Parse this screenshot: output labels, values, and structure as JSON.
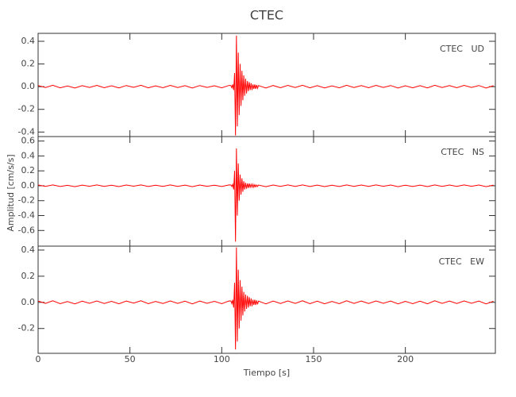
{
  "figure": {
    "title": "CTEC",
    "xlabel": "Tiempo [s]",
    "ylabel": "Amplitud [cm/s/s]"
  },
  "chart_data": [
    {
      "type": "line",
      "label": "CTEC   UD",
      "color": "#ff0000",
      "xlim": [
        0,
        249
      ],
      "xticks": [
        0,
        50,
        100,
        150,
        200
      ],
      "ylim": [
        -0.44,
        0.47
      ],
      "yticks": [
        -0.4,
        -0.2,
        {
          "value": 0,
          "label": "0.0"
        },
        0.2,
        0.4
      ],
      "x": [
        0,
        4,
        8,
        12,
        16,
        20,
        24,
        28,
        32,
        36,
        40,
        44,
        48,
        52,
        56,
        60,
        64,
        68,
        72,
        76,
        80,
        84,
        88,
        92,
        96,
        100,
        104,
        105,
        105.5,
        106,
        106.5,
        107,
        107.5,
        108,
        108.5,
        109,
        109.5,
        110,
        110.5,
        111,
        111.5,
        112,
        112.5,
        113,
        113.5,
        114,
        114.5,
        115,
        115.5,
        116,
        116.5,
        117,
        117.5,
        118,
        118.5,
        119,
        119.5,
        120,
        124,
        128,
        132,
        136,
        140,
        144,
        148,
        152,
        156,
        160,
        164,
        168,
        172,
        176,
        180,
        184,
        188,
        192,
        196,
        200,
        204,
        208,
        212,
        216,
        220,
        224,
        228,
        232,
        236,
        240,
        244,
        248
      ],
      "values": [
        0.01,
        -0.008,
        0.012,
        -0.01,
        0.006,
        -0.012,
        0.009,
        -0.007,
        0.011,
        -0.009,
        0.008,
        -0.011,
        0.01,
        -0.006,
        0.012,
        -0.01,
        0.007,
        -0.009,
        0.011,
        -0.008,
        0.009,
        -0.012,
        0.01,
        -0.007,
        0.008,
        -0.01,
        0.011,
        0.01,
        -0.01,
        0.02,
        -0.03,
        0.12,
        -0.43,
        0.45,
        -0.35,
        0.3,
        -0.25,
        0.2,
        -0.17,
        0.14,
        -0.12,
        0.1,
        -0.08,
        0.07,
        -0.06,
        0.05,
        -0.04,
        0.04,
        -0.03,
        0.03,
        -0.03,
        0.02,
        -0.02,
        0.02,
        -0.02,
        0.015,
        -0.015,
        0.01,
        -0.012,
        0.01,
        -0.009,
        0.011,
        -0.008,
        0.012,
        -0.01,
        0.009,
        -0.011,
        0.007,
        -0.01,
        0.012,
        -0.008,
        0.01,
        -0.009,
        0.011,
        -0.007,
        0.01,
        -0.012,
        0.008,
        -0.01,
        0.009,
        -0.011,
        0.012,
        -0.008,
        0.01,
        -0.009,
        0.011,
        -0.007,
        0.01,
        -0.012,
        0.009
      ]
    },
    {
      "type": "line",
      "label": "CTEC   NS",
      "color": "#ff0000",
      "xlim": [
        0,
        249
      ],
      "xticks": [
        0,
        50,
        100,
        150,
        200
      ],
      "ylim": [
        -0.81,
        0.66
      ],
      "yticks": [
        -0.6,
        -0.4,
        -0.2,
        {
          "value": 0,
          "label": "0.0"
        },
        0.2,
        0.4,
        0.6
      ],
      "x": [
        0,
        4,
        8,
        12,
        16,
        20,
        24,
        28,
        32,
        36,
        40,
        44,
        48,
        52,
        56,
        60,
        64,
        68,
        72,
        76,
        80,
        84,
        88,
        92,
        96,
        100,
        104,
        105,
        105.5,
        106,
        106.5,
        107,
        107.5,
        108,
        108.5,
        109,
        109.5,
        110,
        110.5,
        111,
        111.5,
        112,
        112.5,
        113,
        113.5,
        114,
        114.5,
        115,
        115.5,
        116,
        116.5,
        117,
        117.5,
        118,
        118.5,
        119,
        119.5,
        120,
        124,
        128,
        132,
        136,
        140,
        144,
        148,
        152,
        156,
        160,
        164,
        168,
        172,
        176,
        180,
        184,
        188,
        192,
        196,
        200,
        204,
        208,
        212,
        216,
        220,
        224,
        228,
        232,
        236,
        240,
        244,
        248
      ],
      "values": [
        0.01,
        -0.008,
        0.012,
        -0.01,
        0.006,
        -0.012,
        0.009,
        -0.007,
        0.011,
        -0.009,
        0.008,
        -0.011,
        0.01,
        -0.006,
        0.012,
        -0.01,
        0.007,
        -0.009,
        0.011,
        -0.008,
        0.009,
        -0.012,
        0.01,
        -0.007,
        0.008,
        -0.01,
        0.011,
        0.01,
        -0.01,
        0.02,
        -0.05,
        0.2,
        -0.75,
        0.5,
        -0.4,
        0.3,
        -0.2,
        0.15,
        -0.12,
        0.1,
        -0.08,
        0.06,
        -0.05,
        0.04,
        -0.04,
        0.03,
        -0.03,
        0.03,
        -0.02,
        0.02,
        -0.02,
        0.02,
        -0.02,
        0.015,
        -0.015,
        0.01,
        -0.01,
        0.01,
        -0.012,
        0.01,
        -0.009,
        0.011,
        -0.008,
        0.012,
        -0.01,
        0.009,
        -0.011,
        0.007,
        -0.01,
        0.012,
        -0.008,
        0.01,
        -0.009,
        0.011,
        -0.007,
        0.01,
        -0.012,
        0.008,
        -0.01,
        0.009,
        -0.011,
        0.012,
        -0.008,
        0.01,
        -0.009,
        0.011,
        -0.007,
        0.01,
        -0.012,
        0.009
      ]
    },
    {
      "type": "line",
      "label": "CTEC   EW",
      "color": "#ff0000",
      "xlim": [
        0,
        249
      ],
      "xticks": [
        0,
        50,
        100,
        150,
        200
      ],
      "ylim": [
        -0.39,
        0.43
      ],
      "yticks": [
        -0.2,
        {
          "value": 0,
          "label": "0.0"
        },
        0.2,
        0.4
      ],
      "x": [
        0,
        4,
        8,
        12,
        16,
        20,
        24,
        28,
        32,
        36,
        40,
        44,
        48,
        52,
        56,
        60,
        64,
        68,
        72,
        76,
        80,
        84,
        88,
        92,
        96,
        100,
        104,
        105,
        105.5,
        106,
        106.5,
        107,
        107.5,
        108,
        108.5,
        109,
        109.5,
        110,
        110.5,
        111,
        111.5,
        112,
        112.5,
        113,
        113.5,
        114,
        114.5,
        115,
        115.5,
        116,
        116.5,
        117,
        117.5,
        118,
        118.5,
        119,
        119.5,
        120,
        124,
        128,
        132,
        136,
        140,
        144,
        148,
        152,
        156,
        160,
        164,
        168,
        172,
        176,
        180,
        184,
        188,
        192,
        196,
        200,
        204,
        208,
        212,
        216,
        220,
        224,
        228,
        232,
        236,
        240,
        244,
        248
      ],
      "values": [
        0.01,
        -0.008,
        0.012,
        -0.01,
        0.006,
        -0.012,
        0.009,
        -0.007,
        0.011,
        -0.009,
        0.008,
        -0.011,
        0.01,
        -0.006,
        0.012,
        -0.01,
        0.007,
        -0.009,
        0.011,
        -0.008,
        0.009,
        -0.012,
        0.01,
        -0.007,
        0.008,
        -0.01,
        0.011,
        0.01,
        -0.01,
        0.02,
        -0.04,
        0.15,
        -0.36,
        0.42,
        -0.3,
        0.25,
        -0.2,
        0.17,
        -0.14,
        0.12,
        -0.1,
        0.08,
        -0.07,
        0.06,
        -0.05,
        0.05,
        -0.04,
        0.04,
        -0.03,
        0.03,
        -0.03,
        0.02,
        -0.02,
        0.02,
        -0.02,
        0.015,
        -0.015,
        0.01,
        -0.012,
        0.01,
        -0.009,
        0.011,
        -0.008,
        0.012,
        -0.01,
        0.009,
        -0.011,
        0.007,
        -0.01,
        0.012,
        -0.008,
        0.01,
        -0.009,
        0.011,
        -0.007,
        0.01,
        -0.012,
        0.008,
        -0.01,
        0.009,
        -0.011,
        0.012,
        -0.008,
        0.01,
        -0.009,
        0.011,
        -0.007,
        0.01,
        -0.012,
        0.009
      ]
    }
  ]
}
